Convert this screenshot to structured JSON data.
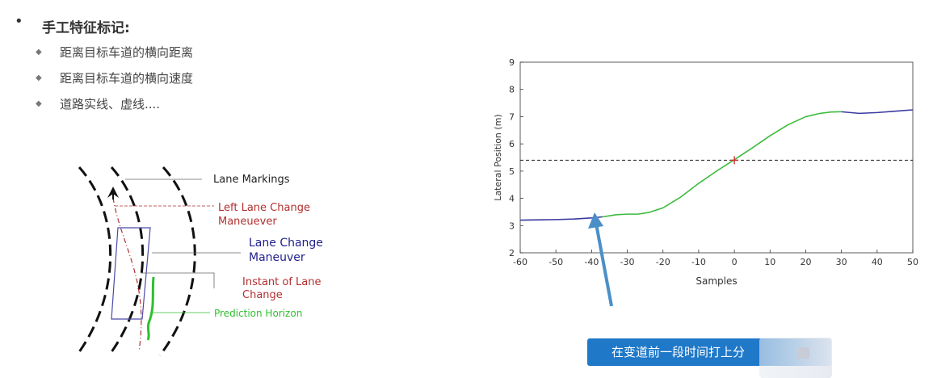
{
  "bullets": {
    "title": "手工特征标记:",
    "items": [
      "距离目标车道的横向距离",
      "距离目标车道的横向速度",
      "道路实线、虚线...."
    ]
  },
  "diagram": {
    "labels": {
      "lane_markings": "Lane Markings",
      "left_lane_change_1": "Left Lane Change",
      "left_lane_change_2": "Maneuever",
      "lane_change_1": "Lane Change",
      "lane_change_2": "Maneuver",
      "instant_1": "Instant of Lane",
      "instant_2": "Change",
      "prediction": "Prediction Horizon"
    },
    "colors": {
      "black": "#222222",
      "red": "#b23030",
      "blue": "#1f1f8f",
      "green": "#2fbf2f"
    }
  },
  "chart_data": {
    "type": "line",
    "xlabel": "Samples",
    "ylabel": "Lateral Position (m)",
    "xlim": [
      -60,
      50
    ],
    "ylim": [
      2,
      9
    ],
    "xticks": [
      -60,
      -50,
      -40,
      -30,
      -20,
      -10,
      0,
      10,
      20,
      30,
      40,
      50
    ],
    "yticks": [
      2,
      3,
      4,
      5,
      6,
      7,
      8,
      9
    ],
    "threshold_y": 5.4,
    "marker": {
      "x": 0,
      "y": 5.4,
      "symbol": "+"
    },
    "series": [
      {
        "segment": "before",
        "color": "#3a3aa0",
        "x": [
          -60,
          -55,
          -50,
          -45,
          -40,
          -37
        ],
        "y": [
          3.2,
          3.21,
          3.22,
          3.24,
          3.28,
          3.32
        ]
      },
      {
        "segment": "horizon",
        "color": "#3dbb3d",
        "x": [
          -37,
          -35,
          -33,
          -30,
          -27,
          -24,
          -20,
          -15,
          -10,
          -5,
          0,
          5,
          10,
          15,
          20,
          24,
          27,
          30
        ],
        "y": [
          3.32,
          3.36,
          3.4,
          3.42,
          3.42,
          3.48,
          3.65,
          4.05,
          4.55,
          5.0,
          5.42,
          5.85,
          6.3,
          6.7,
          7.0,
          7.12,
          7.17,
          7.18
        ]
      },
      {
        "segment": "after",
        "color": "#3a3aa0",
        "x": [
          30,
          35,
          40,
          45,
          50
        ],
        "y": [
          7.18,
          7.12,
          7.15,
          7.2,
          7.25
        ]
      }
    ]
  },
  "banner": {
    "text": "在变道前一段时间打上分"
  }
}
